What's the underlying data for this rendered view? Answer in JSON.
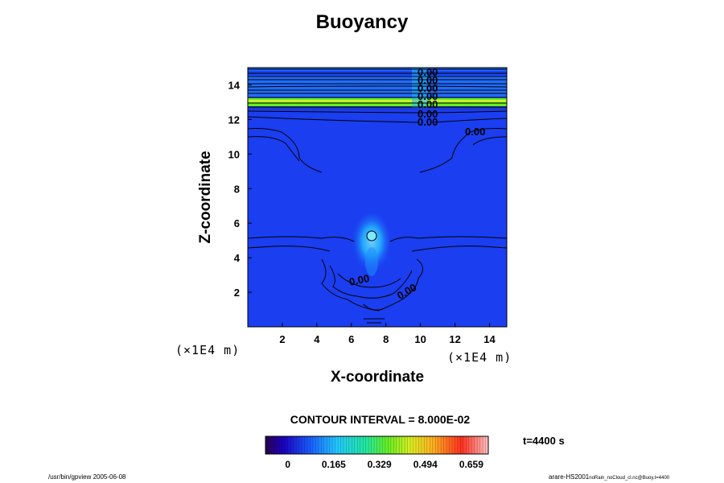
{
  "chart_data": {
    "type": "heatmap",
    "title": "Buoyancy",
    "xlabel": "X-coordinate",
    "ylabel": "Z-coordinate",
    "x_unit": "(×1E4 m)",
    "y_unit": "(×1E4 m)",
    "xlim": [
      0,
      15
    ],
    "ylim": [
      0,
      15
    ],
    "x_ticks": [
      "2",
      "4",
      "6",
      "8",
      "10",
      "12",
      "14"
    ],
    "y_ticks": [
      "2",
      "4",
      "6",
      "8",
      "10",
      "12",
      "14"
    ],
    "contour_labels": [
      "0.00",
      "0.00",
      "0.00",
      "0.00",
      "0.00",
      "0.00",
      "0.00",
      "0.00",
      "0.00",
      "0.00"
    ],
    "contour_interval": "CONTOUR INTERVAL = 8.000E-02",
    "time": "t=4400 s",
    "colorbar": {
      "range": [
        -0.08,
        0.72
      ],
      "ticks": [
        "0",
        "0.165",
        "0.329",
        "0.494",
        "0.659"
      ],
      "tick_values": [
        0,
        0.165,
        0.329,
        0.494,
        0.659
      ]
    },
    "colors": {
      "background": "#1a3ef0",
      "upper_band": "#1f6dff",
      "green_band": "#66ee22",
      "bubble": "#22b8ff",
      "contour": "#000000"
    }
  },
  "footer": {
    "left": "/usr/bin/gpview 2005-06-08",
    "right_main": "arare-HS2001",
    "right_small": "noRain_noCloud_cl.nc@Buoy,t=4400"
  }
}
